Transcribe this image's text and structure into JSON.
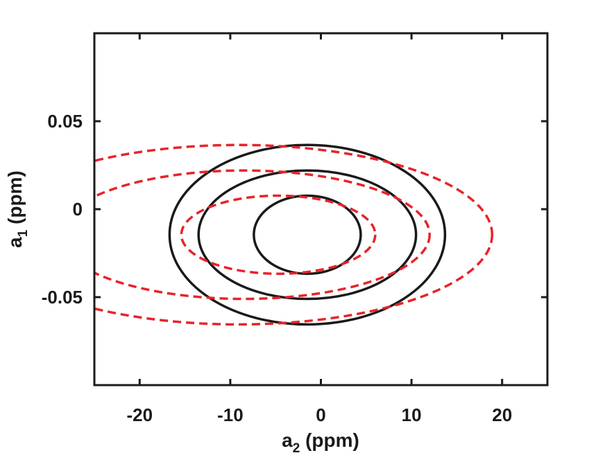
{
  "chart_data": {
    "type": "contour",
    "xlabel": {
      "main": "a",
      "sub": "2",
      "unit": " (ppm)"
    },
    "ylabel": {
      "main": "a",
      "sub": "1",
      "unit": " (ppm)"
    },
    "xlim": [
      -25,
      25
    ],
    "ylim": [
      -0.1,
      0.1
    ],
    "xticks": [
      -20,
      -10,
      0,
      10,
      20
    ],
    "xtick_labels": [
      "-20",
      "-10",
      "0",
      "10",
      "20"
    ],
    "yticks": [
      -0.05,
      0,
      0.05
    ],
    "ytick_labels": [
      "-0.05",
      "0",
      "0.05"
    ],
    "grid": false,
    "series": [
      {
        "style": "solid",
        "color": "#1a1a1a",
        "center": [
          -1.5,
          -0.0145
        ],
        "ellipses": [
          {
            "semi_x": 5.9,
            "semi_y": 0.0222
          },
          {
            "semi_x": 12.0,
            "semi_y": 0.0365
          },
          {
            "semi_x": 15.2,
            "semi_y": 0.051
          }
        ]
      },
      {
        "style": "dashed",
        "color": "#e8232a",
        "ellipses": [
          {
            "cx": -4.7,
            "cy": -0.0145,
            "semi_x": 10.7,
            "semi_y": 0.0222
          },
          {
            "cx": -8.5,
            "cy": -0.0145,
            "semi_x": 20.5,
            "semi_y": 0.0365
          },
          {
            "cx": -9.1,
            "cy": -0.0145,
            "semi_x": 28.0,
            "semi_y": 0.051
          }
        ]
      }
    ]
  }
}
